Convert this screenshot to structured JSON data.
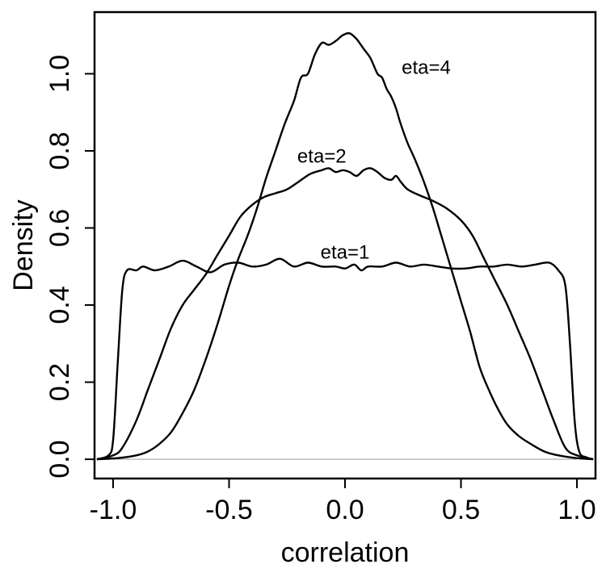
{
  "chart_data": {
    "type": "line",
    "title": "",
    "xlabel": "correlation",
    "ylabel": "Density",
    "xlim": [
      -1.08,
      1.08
    ],
    "ylim": [
      -0.05,
      1.16
    ],
    "x_ticks": [
      -1.0,
      -0.5,
      0.0,
      0.5,
      1.0
    ],
    "x_tick_labels": [
      "-1.0",
      "-0.5",
      "0.0",
      "0.5",
      "1.0"
    ],
    "y_ticks": [
      0.0,
      0.2,
      0.4,
      0.6,
      0.8,
      1.0
    ],
    "y_tick_labels": [
      "0.0",
      "0.2",
      "0.4",
      "0.6",
      "0.8",
      "1.0"
    ],
    "baseline": 0,
    "grid": false,
    "legend": "none",
    "line_color": "#000000",
    "baseline_color": "#bbbbbb",
    "series": [
      {
        "name": "eta=1",
        "label_at": [
          0.0,
          0.52
        ],
        "points": [
          [
            -1.07,
            0.0
          ],
          [
            -1.02,
            0.01
          ],
          [
            -1.0,
            0.05
          ],
          [
            -0.98,
            0.25
          ],
          [
            -0.96,
            0.44
          ],
          [
            -0.94,
            0.49
          ],
          [
            -0.9,
            0.49
          ],
          [
            -0.87,
            0.5
          ],
          [
            -0.82,
            0.49
          ],
          [
            -0.76,
            0.5
          ],
          [
            -0.7,
            0.515
          ],
          [
            -0.64,
            0.5
          ],
          [
            -0.58,
            0.485
          ],
          [
            -0.52,
            0.505
          ],
          [
            -0.46,
            0.51
          ],
          [
            -0.4,
            0.5
          ],
          [
            -0.34,
            0.505
          ],
          [
            -0.28,
            0.52
          ],
          [
            -0.22,
            0.5
          ],
          [
            -0.16,
            0.51
          ],
          [
            -0.1,
            0.5
          ],
          [
            -0.04,
            0.5
          ],
          [
            0.0,
            0.495
          ],
          [
            0.04,
            0.505
          ],
          [
            0.07,
            0.49
          ],
          [
            0.1,
            0.5
          ],
          [
            0.16,
            0.5
          ],
          [
            0.22,
            0.51
          ],
          [
            0.28,
            0.5
          ],
          [
            0.34,
            0.505
          ],
          [
            0.4,
            0.5
          ],
          [
            0.46,
            0.495
          ],
          [
            0.52,
            0.495
          ],
          [
            0.58,
            0.5
          ],
          [
            0.64,
            0.5
          ],
          [
            0.7,
            0.505
          ],
          [
            0.76,
            0.5
          ],
          [
            0.82,
            0.505
          ],
          [
            0.88,
            0.51
          ],
          [
            0.92,
            0.49
          ],
          [
            0.95,
            0.45
          ],
          [
            0.97,
            0.3
          ],
          [
            0.99,
            0.1
          ],
          [
            1.01,
            0.02
          ],
          [
            1.04,
            0.005
          ],
          [
            1.07,
            0.0
          ]
        ]
      },
      {
        "name": "eta=2",
        "label_at": [
          -0.1,
          0.77
        ],
        "points": [
          [
            -1.07,
            0.0
          ],
          [
            -1.0,
            0.01
          ],
          [
            -0.96,
            0.03
          ],
          [
            -0.9,
            0.1
          ],
          [
            -0.85,
            0.18
          ],
          [
            -0.8,
            0.26
          ],
          [
            -0.75,
            0.34
          ],
          [
            -0.7,
            0.4
          ],
          [
            -0.65,
            0.44
          ],
          [
            -0.6,
            0.48
          ],
          [
            -0.55,
            0.53
          ],
          [
            -0.5,
            0.58
          ],
          [
            -0.45,
            0.63
          ],
          [
            -0.4,
            0.66
          ],
          [
            -0.35,
            0.68
          ],
          [
            -0.3,
            0.69
          ],
          [
            -0.25,
            0.7
          ],
          [
            -0.2,
            0.72
          ],
          [
            -0.15,
            0.74
          ],
          [
            -0.1,
            0.75
          ],
          [
            -0.07,
            0.755
          ],
          [
            -0.04,
            0.745
          ],
          [
            -0.01,
            0.75
          ],
          [
            0.02,
            0.745
          ],
          [
            0.05,
            0.735
          ],
          [
            0.08,
            0.75
          ],
          [
            0.11,
            0.755
          ],
          [
            0.14,
            0.745
          ],
          [
            0.17,
            0.73
          ],
          [
            0.2,
            0.725
          ],
          [
            0.22,
            0.735
          ],
          [
            0.24,
            0.72
          ],
          [
            0.27,
            0.7
          ],
          [
            0.32,
            0.685
          ],
          [
            0.38,
            0.67
          ],
          [
            0.44,
            0.65
          ],
          [
            0.5,
            0.62
          ],
          [
            0.55,
            0.58
          ],
          [
            0.6,
            0.52
          ],
          [
            0.65,
            0.46
          ],
          [
            0.7,
            0.4
          ],
          [
            0.75,
            0.33
          ],
          [
            0.8,
            0.26
          ],
          [
            0.85,
            0.18
          ],
          [
            0.9,
            0.1
          ],
          [
            0.95,
            0.03
          ],
          [
            1.0,
            0.01
          ],
          [
            1.07,
            0.0
          ]
        ]
      },
      {
        "name": "eta=4",
        "label_at": [
          0.35,
          1.0
        ],
        "points": [
          [
            -1.07,
            0.0
          ],
          [
            -0.98,
            0.003
          ],
          [
            -0.9,
            0.01
          ],
          [
            -0.85,
            0.02
          ],
          [
            -0.8,
            0.04
          ],
          [
            -0.75,
            0.07
          ],
          [
            -0.7,
            0.12
          ],
          [
            -0.65,
            0.18
          ],
          [
            -0.6,
            0.26
          ],
          [
            -0.55,
            0.35
          ],
          [
            -0.5,
            0.45
          ],
          [
            -0.46,
            0.52
          ],
          [
            -0.42,
            0.58
          ],
          [
            -0.38,
            0.65
          ],
          [
            -0.34,
            0.73
          ],
          [
            -0.3,
            0.8
          ],
          [
            -0.26,
            0.87
          ],
          [
            -0.22,
            0.93
          ],
          [
            -0.19,
            0.99
          ],
          [
            -0.16,
            1.0
          ],
          [
            -0.13,
            1.05
          ],
          [
            -0.1,
            1.08
          ],
          [
            -0.07,
            1.075
          ],
          [
            -0.04,
            1.085
          ],
          [
            -0.01,
            1.1
          ],
          [
            0.02,
            1.105
          ],
          [
            0.05,
            1.09
          ],
          [
            0.08,
            1.065
          ],
          [
            0.11,
            1.04
          ],
          [
            0.14,
            1.0
          ],
          [
            0.16,
            0.99
          ],
          [
            0.18,
            0.96
          ],
          [
            0.2,
            0.94
          ],
          [
            0.22,
            0.91
          ],
          [
            0.24,
            0.87
          ],
          [
            0.27,
            0.82
          ],
          [
            0.3,
            0.78
          ],
          [
            0.34,
            0.72
          ],
          [
            0.38,
            0.65
          ],
          [
            0.42,
            0.57
          ],
          [
            0.46,
            0.49
          ],
          [
            0.5,
            0.41
          ],
          [
            0.54,
            0.33
          ],
          [
            0.58,
            0.24
          ],
          [
            0.62,
            0.18
          ],
          [
            0.66,
            0.13
          ],
          [
            0.7,
            0.09
          ],
          [
            0.75,
            0.06
          ],
          [
            0.8,
            0.04
          ],
          [
            0.86,
            0.02
          ],
          [
            0.92,
            0.01
          ],
          [
            1.0,
            0.003
          ],
          [
            1.07,
            0.0
          ]
        ]
      }
    ]
  }
}
